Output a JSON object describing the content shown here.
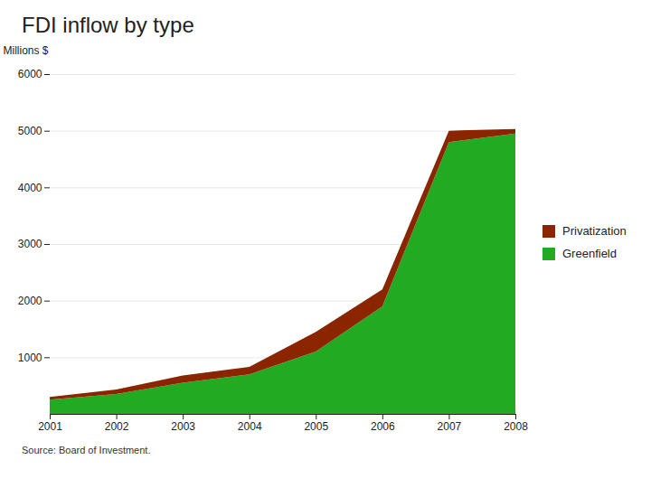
{
  "chart_data": {
    "type": "area",
    "stacked": true,
    "title": "FDI inflow by type",
    "ylabel": "Millions $",
    "caption": "Source: Board of Investment.",
    "x": [
      2001,
      2002,
      2003,
      2004,
      2005,
      2006,
      2007,
      2008
    ],
    "series": [
      {
        "name": "Greenfield",
        "color": "#22aa22",
        "values": [
          250,
          350,
          550,
          700,
          1100,
          1900,
          4800,
          4950
        ]
      },
      {
        "name": "Privatization",
        "color": "#8B2500",
        "values": [
          50,
          80,
          130,
          130,
          350,
          300,
          200,
          80
        ]
      }
    ],
    "xlim": [
      2001,
      2008
    ],
    "xticks": [
      2001,
      2002,
      2003,
      2004,
      2005,
      2006,
      2007,
      2008
    ],
    "ylim": [
      0,
      6000
    ],
    "yticks": [
      1000,
      2000,
      3000,
      4000,
      5000,
      6000
    ],
    "grid": true,
    "legend": "right"
  }
}
